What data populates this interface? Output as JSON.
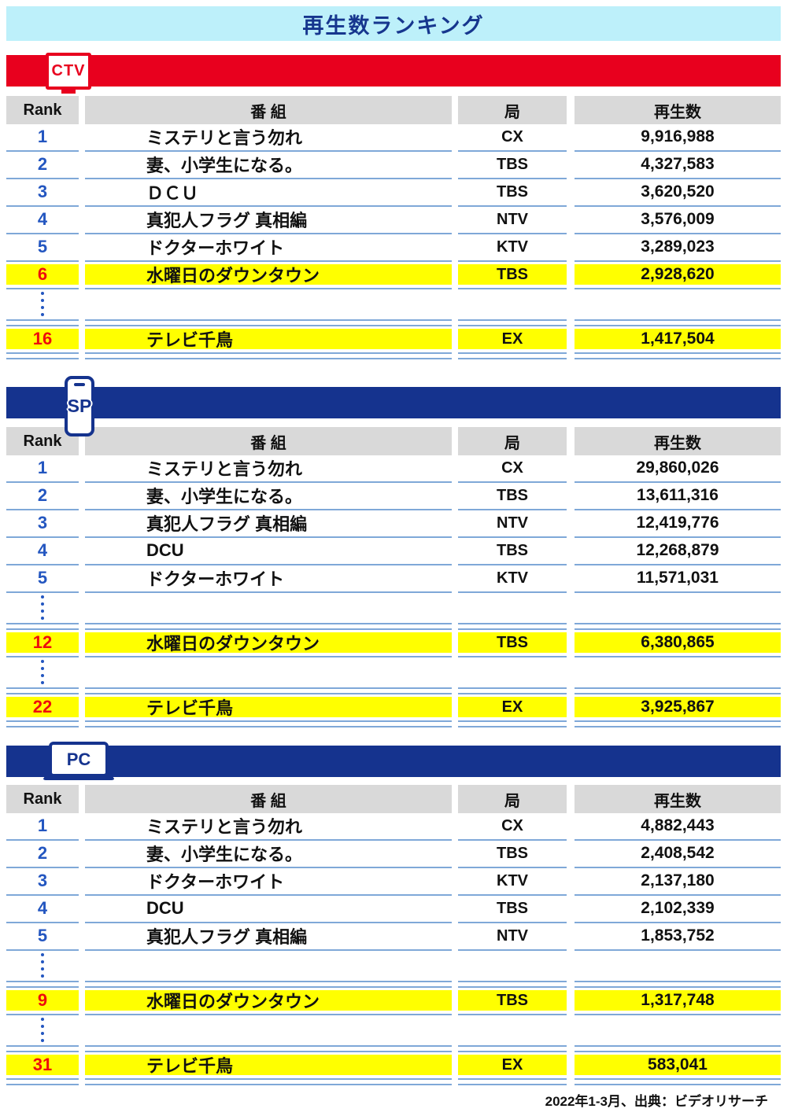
{
  "title": "再生数ランキング",
  "footer": "2022年1-3月、出典：ビデオリサーチ",
  "colors": {
    "title_bg": "#BDF0FA",
    "title_text": "#16368E",
    "accent_red": "#E8001E",
    "accent_navy": "#15338E",
    "highlight_yellow": "#FFFF00",
    "rank_blue": "#2356C0",
    "rank_red": "#EE0D0D",
    "separator_blue": "#7FA8D8",
    "header_gray": "#D9D9D9"
  },
  "chart_data": [
    {
      "type": "table",
      "device": "CTV",
      "icon": "tv-icon",
      "columns": [
        "Rank",
        "番 組",
        "局",
        "再生数"
      ],
      "rows": [
        {
          "rank": "1",
          "program": "ミステリと言う勿れ",
          "station": "CX",
          "count": "9,916,988"
        },
        {
          "rank": "2",
          "program": "妻、小学生になる。",
          "station": "TBS",
          "count": "4,327,583"
        },
        {
          "rank": "3",
          "program": "ＤＣＵ",
          "station": "TBS",
          "count": "3,620,520"
        },
        {
          "rank": "4",
          "program": "真犯人フラグ 真相編",
          "station": "NTV",
          "count": "3,576,009"
        },
        {
          "rank": "5",
          "program": "ドクターホワイト",
          "station": "KTV",
          "count": "3,289,023"
        },
        {
          "rank": "6",
          "program": "水曜日のダウンタウン",
          "station": "TBS",
          "count": "2,928,620",
          "highlight": true
        },
        {
          "dots": true
        },
        {
          "rank": "16",
          "program": "テレビ千鳥",
          "station": "EX",
          "count": "1,417,504",
          "highlight": true
        }
      ]
    },
    {
      "type": "table",
      "device": "SP",
      "icon": "smartphone-icon",
      "columns": [
        "Rank",
        "番 組",
        "局",
        "再生数"
      ],
      "rows": [
        {
          "rank": "1",
          "program": "ミステリと言う勿れ",
          "station": "CX",
          "count": "29,860,026"
        },
        {
          "rank": "2",
          "program": "妻、小学生になる。",
          "station": "TBS",
          "count": "13,611,316"
        },
        {
          "rank": "3",
          "program": "真犯人フラグ 真相編",
          "station": "NTV",
          "count": "12,419,776"
        },
        {
          "rank": "4",
          "program": "DCU",
          "station": "TBS",
          "count": "12,268,879"
        },
        {
          "rank": "5",
          "program": "ドクターホワイト",
          "station": "KTV",
          "count": "11,571,031"
        },
        {
          "dots": true
        },
        {
          "rank": "12",
          "program": "水曜日のダウンタウン",
          "station": "TBS",
          "count": "6,380,865",
          "highlight": true
        },
        {
          "dots": true
        },
        {
          "rank": "22",
          "program": "テレビ千鳥",
          "station": "EX",
          "count": "3,925,867",
          "highlight": true
        }
      ]
    },
    {
      "type": "table",
      "device": "PC",
      "icon": "laptop-icon",
      "columns": [
        "Rank",
        "番 組",
        "局",
        "再生数"
      ],
      "rows": [
        {
          "rank": "1",
          "program": "ミステリと言う勿れ",
          "station": "CX",
          "count": "4,882,443"
        },
        {
          "rank": "2",
          "program": "妻、小学生になる。",
          "station": "TBS",
          "count": "2,408,542"
        },
        {
          "rank": "3",
          "program": "ドクターホワイト",
          "station": "KTV",
          "count": "2,137,180"
        },
        {
          "rank": "4",
          "program": "DCU",
          "station": "TBS",
          "count": "2,102,339"
        },
        {
          "rank": "5",
          "program": "真犯人フラグ 真相編",
          "station": "NTV",
          "count": "1,853,752"
        },
        {
          "dots": true
        },
        {
          "rank": "9",
          "program": "水曜日のダウンタウン",
          "station": "TBS",
          "count": "1,317,748",
          "highlight": true
        },
        {
          "dots": true
        },
        {
          "rank": "31",
          "program": "テレビ千鳥",
          "station": "EX",
          "count": "583,041",
          "highlight": true
        }
      ]
    }
  ]
}
